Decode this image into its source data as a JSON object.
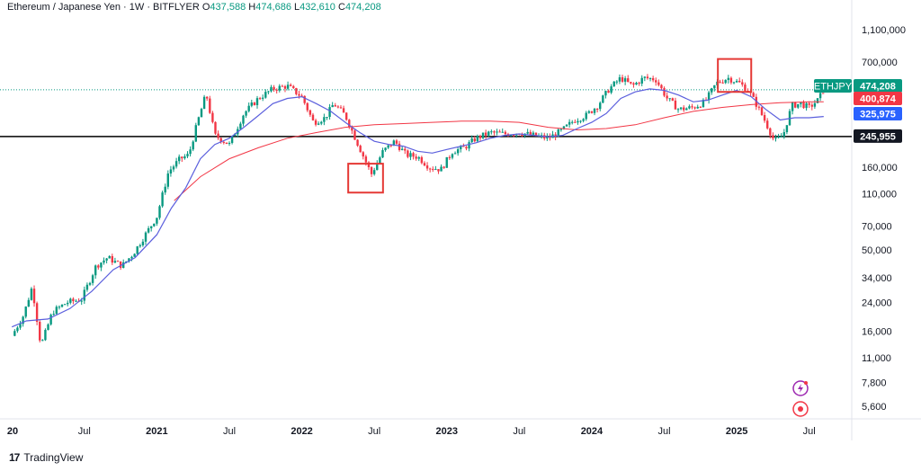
{
  "header": {
    "symbol": "Ethereum / Japanese Yen · 1W · BITFLYER",
    "o_label": "O",
    "o_value": "437,588",
    "h_label": "H",
    "h_value": "474,686",
    "l_label": "L",
    "l_value": "432,610",
    "c_label": "C",
    "c_value": "474,208"
  },
  "brand": {
    "name": "TradingView",
    "logo_text": "17"
  },
  "colors": {
    "up": "#089981",
    "down": "#f23645",
    "ma_fast": "#5b5fdd",
    "ma_slow": "#f23645",
    "support": "#000000",
    "box": "#e53935"
  },
  "chart_data": {
    "type": "candlestick",
    "title": "Ethereum / Japanese Yen · 1W · BITFLYER",
    "scale": "log",
    "ylim": [
      4800,
      1400000
    ],
    "y_ticks": [
      {
        "label": "1,100,000",
        "value": 1100000
      },
      {
        "label": "700,000",
        "value": 700000
      },
      {
        "label": "160,000",
        "value": 160000
      },
      {
        "label": "110,000",
        "value": 110000
      },
      {
        "label": "70,000",
        "value": 70000
      },
      {
        "label": "50,000",
        "value": 50000
      },
      {
        "label": "34,000",
        "value": 34000
      },
      {
        "label": "24,000",
        "value": 24000
      },
      {
        "label": "16,000",
        "value": 16000
      },
      {
        "label": "11,000",
        "value": 11000
      },
      {
        "label": "7,800",
        "value": 7800
      },
      {
        "label": "5,600",
        "value": 5600
      }
    ],
    "x_ticks": [
      {
        "label": "20",
        "t": 2020.0,
        "bold": true
      },
      {
        "label": "Jul",
        "t": 2020.5,
        "bold": false
      },
      {
        "label": "2021",
        "t": 2021.0,
        "bold": true
      },
      {
        "label": "Jul",
        "t": 2021.5,
        "bold": false
      },
      {
        "label": "2022",
        "t": 2022.0,
        "bold": true
      },
      {
        "label": "Jul",
        "t": 2022.5,
        "bold": false
      },
      {
        "label": "2023",
        "t": 2023.0,
        "bold": true
      },
      {
        "label": "Jul",
        "t": 2023.5,
        "bold": false
      },
      {
        "label": "2024",
        "t": 2024.0,
        "bold": true
      },
      {
        "label": "Jul",
        "t": 2024.5,
        "bold": false
      },
      {
        "label": "2025",
        "t": 2025.0,
        "bold": true
      },
      {
        "label": "Jul",
        "t": 2025.5,
        "bold": false
      }
    ],
    "price_tags": [
      {
        "text": "ETHJPY",
        "value": 474208,
        "color": "#089981",
        "kind": "symbol"
      },
      {
        "text": "474,208",
        "value": 474208,
        "color": "#089981",
        "kind": "price"
      },
      {
        "text": "400,874",
        "value": 400874,
        "color": "#f23645",
        "kind": "price"
      },
      {
        "text": "325,975",
        "value": 325975,
        "color": "#2962ff",
        "kind": "price"
      },
      {
        "text": "245,955",
        "value": 245955,
        "color": "#131722",
        "kind": "price"
      }
    ],
    "support_level": 245955,
    "last_close": 474208,
    "annotations": [
      {
        "type": "box",
        "t0": 2022.32,
        "t1": 2022.56,
        "low": 112000,
        "high": 168000
      },
      {
        "type": "box",
        "t0": 2024.87,
        "t1": 2025.1,
        "low": 460000,
        "high": 730000
      }
    ],
    "price_path": [
      [
        2020.0,
        15000
      ],
      [
        2020.08,
        20000
      ],
      [
        2020.14,
        30000
      ],
      [
        2020.2,
        13000
      ],
      [
        2020.28,
        21000
      ],
      [
        2020.38,
        24000
      ],
      [
        2020.48,
        25000
      ],
      [
        2020.58,
        40000
      ],
      [
        2020.66,
        45000
      ],
      [
        2020.76,
        40000
      ],
      [
        2020.84,
        48000
      ],
      [
        2020.92,
        62000
      ],
      [
        2021.0,
        80000
      ],
      [
        2021.08,
        150000
      ],
      [
        2021.16,
        180000
      ],
      [
        2021.22,
        190000
      ],
      [
        2021.28,
        300000
      ],
      [
        2021.34,
        450000
      ],
      [
        2021.4,
        250000
      ],
      [
        2021.5,
        220000
      ],
      [
        2021.6,
        340000
      ],
      [
        2021.7,
        420000
      ],
      [
        2021.8,
        480000
      ],
      [
        2021.9,
        500000
      ],
      [
        2022.0,
        430000
      ],
      [
        2022.08,
        300000
      ],
      [
        2022.16,
        320000
      ],
      [
        2022.22,
        390000
      ],
      [
        2022.3,
        330000
      ],
      [
        2022.36,
        250000
      ],
      [
        2022.42,
        190000
      ],
      [
        2022.48,
        145000
      ],
      [
        2022.56,
        200000
      ],
      [
        2022.64,
        230000
      ],
      [
        2022.72,
        190000
      ],
      [
        2022.8,
        185000
      ],
      [
        2022.88,
        160000
      ],
      [
        2022.96,
        155000
      ],
      [
        2023.04,
        200000
      ],
      [
        2023.12,
        210000
      ],
      [
        2023.2,
        240000
      ],
      [
        2023.3,
        260000
      ],
      [
        2023.4,
        255000
      ],
      [
        2023.5,
        260000
      ],
      [
        2023.6,
        250000
      ],
      [
        2023.7,
        240000
      ],
      [
        2023.8,
        270000
      ],
      [
        2023.88,
        310000
      ],
      [
        2023.96,
        330000
      ],
      [
        2024.04,
        380000
      ],
      [
        2024.12,
        480000
      ],
      [
        2024.2,
        560000
      ],
      [
        2024.28,
        500000
      ],
      [
        2024.36,
        560000
      ],
      [
        2024.44,
        550000
      ],
      [
        2024.52,
        420000
      ],
      [
        2024.6,
        360000
      ],
      [
        2024.7,
        370000
      ],
      [
        2024.78,
        400000
      ],
      [
        2024.86,
        520000
      ],
      [
        2024.94,
        560000
      ],
      [
        2025.02,
        520000
      ],
      [
        2025.08,
        470000
      ],
      [
        2025.14,
        380000
      ],
      [
        2025.2,
        300000
      ],
      [
        2025.26,
        230000
      ],
      [
        2025.32,
        250000
      ],
      [
        2025.38,
        380000
      ],
      [
        2025.44,
        390000
      ],
      [
        2025.5,
        370000
      ],
      [
        2025.56,
        410000
      ],
      [
        2025.6,
        474208
      ]
    ],
    "series": [
      {
        "name": "MA fast",
        "color": "#5b5fdd",
        "values": [
          [
            2020.0,
            17000
          ],
          [
            2020.1,
            18500
          ],
          [
            2020.25,
            19000
          ],
          [
            2020.4,
            22000
          ],
          [
            2020.55,
            28000
          ],
          [
            2020.7,
            38000
          ],
          [
            2020.85,
            45000
          ],
          [
            2021.0,
            62000
          ],
          [
            2021.1,
            90000
          ],
          [
            2021.2,
            120000
          ],
          [
            2021.3,
            180000
          ],
          [
            2021.4,
            220000
          ],
          [
            2021.5,
            240000
          ],
          [
            2021.6,
            280000
          ],
          [
            2021.7,
            330000
          ],
          [
            2021.8,
            390000
          ],
          [
            2021.9,
            420000
          ],
          [
            2022.0,
            430000
          ],
          [
            2022.1,
            390000
          ],
          [
            2022.2,
            350000
          ],
          [
            2022.3,
            300000
          ],
          [
            2022.4,
            260000
          ],
          [
            2022.5,
            230000
          ],
          [
            2022.6,
            220000
          ],
          [
            2022.7,
            215000
          ],
          [
            2022.8,
            200000
          ],
          [
            2022.9,
            195000
          ],
          [
            2023.0,
            205000
          ],
          [
            2023.1,
            215000
          ],
          [
            2023.2,
            225000
          ],
          [
            2023.3,
            240000
          ],
          [
            2023.4,
            250000
          ],
          [
            2023.5,
            255000
          ],
          [
            2023.6,
            250000
          ],
          [
            2023.7,
            245000
          ],
          [
            2023.8,
            250000
          ],
          [
            2023.9,
            275000
          ],
          [
            2024.0,
            300000
          ],
          [
            2024.1,
            340000
          ],
          [
            2024.2,
            420000
          ],
          [
            2024.3,
            460000
          ],
          [
            2024.4,
            480000
          ],
          [
            2024.5,
            470000
          ],
          [
            2024.6,
            440000
          ],
          [
            2024.7,
            400000
          ],
          [
            2024.8,
            410000
          ],
          [
            2024.9,
            440000
          ],
          [
            2025.0,
            470000
          ],
          [
            2025.1,
            430000
          ],
          [
            2025.2,
            360000
          ],
          [
            2025.3,
            310000
          ],
          [
            2025.4,
            320000
          ],
          [
            2025.5,
            320000
          ],
          [
            2025.6,
            325975
          ]
        ]
      },
      {
        "name": "MA slow",
        "color": "#f23645",
        "values": [
          [
            2021.12,
            100000
          ],
          [
            2021.3,
            140000
          ],
          [
            2021.5,
            180000
          ],
          [
            2021.7,
            210000
          ],
          [
            2021.9,
            240000
          ],
          [
            2022.1,
            260000
          ],
          [
            2022.3,
            280000
          ],
          [
            2022.5,
            290000
          ],
          [
            2022.7,
            295000
          ],
          [
            2022.9,
            300000
          ],
          [
            2023.1,
            305000
          ],
          [
            2023.3,
            305000
          ],
          [
            2023.5,
            300000
          ],
          [
            2023.7,
            280000
          ],
          [
            2023.9,
            270000
          ],
          [
            2024.1,
            275000
          ],
          [
            2024.3,
            290000
          ],
          [
            2024.5,
            320000
          ],
          [
            2024.7,
            350000
          ],
          [
            2024.9,
            370000
          ],
          [
            2025.1,
            385000
          ],
          [
            2025.3,
            395000
          ],
          [
            2025.5,
            400000
          ],
          [
            2025.6,
            400874
          ]
        ]
      }
    ]
  }
}
